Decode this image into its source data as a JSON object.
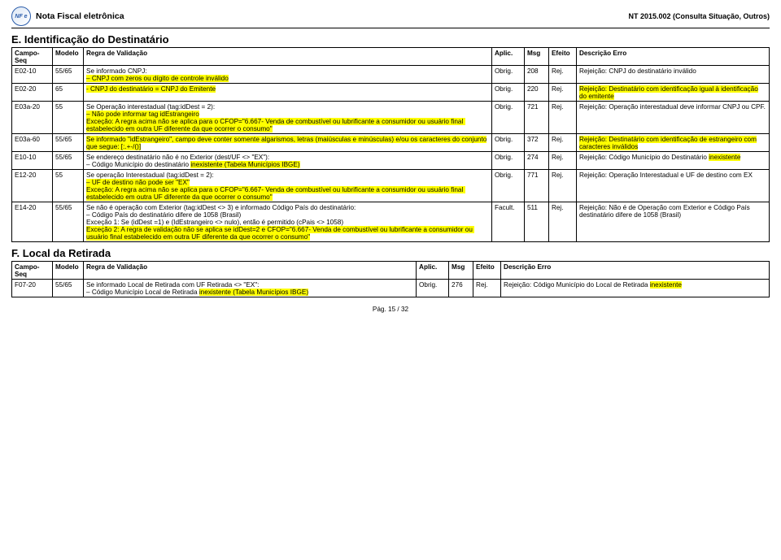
{
  "header": {
    "doc_title": "Nota Fiscal eletrônica",
    "doc_code": "NT 2015.002 (Consulta Situação, Outros)"
  },
  "sectionE": {
    "title": "E. Identificação do Destinatário",
    "cols": {
      "campo": "Campo-Seq",
      "modelo": "Modelo",
      "regra": "Regra de Validação",
      "aplic": "Aplic.",
      "msg": "Msg",
      "efeito": "Efeito",
      "descr": "Descrição Erro"
    },
    "rows": [
      {
        "campo": "E02-10",
        "modelo": "55/65",
        "regra_plain": "Se informado CNPJ:",
        "regra_hl": "– CNPJ com zeros ou dígito de controle inválido",
        "aplic": "Obrig.",
        "msg": "208",
        "efeito": "Rej.",
        "descr": "Rejeição: CNPJ do destinatário inválido"
      },
      {
        "campo": "E02-20",
        "modelo": "65",
        "regra_plain": "",
        "regra_full_hl": "- CNPJ do destinatário = CNPJ do Emitente",
        "aplic": "Obrig.",
        "msg": "220",
        "efeito": "Rej.",
        "descr_hl": "Rejeição: Destinatário com identificação igual à identificação do emitente"
      },
      {
        "campo": "E03a-20",
        "modelo": "55",
        "regra_plain": "Se Operação interestadual (tag:idDest = 2):",
        "regra_hl": "– Não pode informar tag idEstrangeiro\nExceção: A regra acima não se aplica para o CFOP=\"6.667- Venda de combustível ou lubrificante a consumidor ou usuário final estabelecido em outra UF diferente da que ocorrer o consumo\"",
        "aplic": "Obrig.",
        "msg": "721",
        "efeito": "Rej.",
        "descr": "Rejeição: Operação interestadual deve informar CNPJ ou CPF."
      },
      {
        "campo": "E03a-60",
        "modelo": "55/65",
        "regra_full_hl": "Se informado \"idEstrangeiro\", campo deve conter somente algarismos, letras (maiúsculas e minúsculas) e/ou os caracteres do conjunto que segue: [:.+-/()]",
        "aplic": "Obrig.",
        "msg": "372",
        "efeito": "Rej.",
        "descr_hl": "Rejeição: Destinatário com identificação de estrangeiro com caracteres inválidos"
      },
      {
        "campo": "E10-10",
        "modelo": "55/65",
        "regra_plain": "Se endereço destinatário não é no Exterior (dest/UF <> \"EX\"):",
        "regra_hl_prefix": "– Código Município do destinatário ",
        "regra_hl_span": "inexistente (Tabela Municípios IBGE)",
        "aplic": "Obrig.",
        "msg": "274",
        "efeito": "Rej.",
        "descr_plain_prefix": "Rejeição: Código Município do Destinatário ",
        "descr_hl_span": "inexistente"
      },
      {
        "campo": "E12-20",
        "modelo": "55",
        "regra_plain": "Se operação Interestadual (tag:idDest = 2):",
        "regra_hl": "– UF de destino não pode ser \"EX\"\nExceção: A regra acima não se aplica para o CFOP=\"6.667- Venda de combustível ou lubrificante a consumidor ou usuário final estabelecido em outra UF diferente da que ocorrer o consumo\"",
        "aplic": "Obrig.",
        "msg": "771",
        "efeito": "Rej.",
        "descr": "Rejeição: Operação Interestadual e UF de destino com EX"
      },
      {
        "campo": "E14-20",
        "modelo": "55/65",
        "regra_plain": "Se não é operação com Exterior (tag:idDest <> 3) e informado Código País do destinatário:\n– Código País do destinatário difere de 1058 (Brasil)\nExceção 1: Se (idDest =1) e (IdEstrangeiro <> nulo), então é permitido (cPais <> 1058)",
        "regra_hl": "Exceção 2: A regra de validação não se aplica se idDest=2 e CFOP=\"6.667- Venda de combustível ou lubrificante a consumidor ou usuário final estabelecido em outra UF diferente da que ocorrer o consumo\"",
        "aplic": "Facult.",
        "msg": "511",
        "efeito": "Rej.",
        "descr": "Rejeição: Não é de Operação com Exterior e Código País destinatário difere de 1058 (Brasil)"
      }
    ]
  },
  "sectionF": {
    "title": "F. Local da Retirada",
    "cols": {
      "campo": "Campo-Seq",
      "modelo": "Modelo",
      "regra": "Regra de Validação",
      "aplic": "Aplic.",
      "msg": "Msg",
      "efeito": "Efeito",
      "descr": "Descrição Erro"
    },
    "rows": [
      {
        "campo": "F07-20",
        "modelo": "55/65",
        "regra_plain": "Se informado Local de Retirada com UF Retirada <> \"EX\":",
        "regra_hl_prefix": "– Código Município Local de Retirada ",
        "regra_hl_span": "inexistente (Tabela Municípios IBGE)",
        "aplic": "Obrig.",
        "msg": "276",
        "efeito": "Rej.",
        "descr_plain_prefix": "Rejeição: Código Município do Local de Retirada ",
        "descr_hl_span": "inexistente"
      }
    ]
  },
  "footer": {
    "page": "Pág. 15 / 32"
  }
}
